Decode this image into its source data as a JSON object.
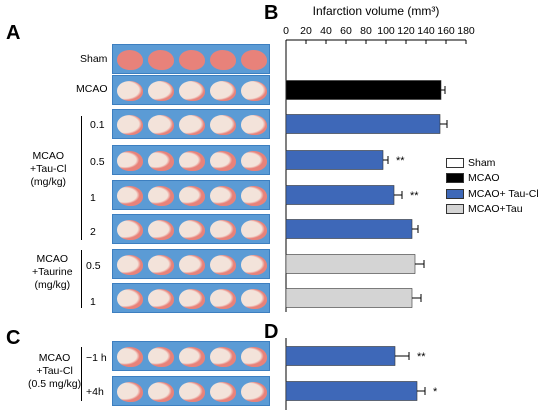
{
  "panels": {
    "a": "A",
    "b": "B",
    "c": "C",
    "d": "D"
  },
  "row_labels": {
    "sham": "Sham",
    "mcao": "MCAO",
    "taucl_group": [
      "MCAO",
      "+Tau-Cl",
      "(mg/kg)"
    ],
    "taucl_doses": [
      "0.1",
      "0.5",
      "1",
      "2"
    ],
    "taurine_group": [
      "MCAO",
      "+Taurine",
      "(mg/kg)"
    ],
    "taurine_doses": [
      "0.5",
      "1"
    ],
    "time_group": [
      "MCAO",
      "+Tau-Cl",
      "(0.5 mg/kg)"
    ],
    "time_points": [
      "−1 h",
      "+4h"
    ]
  },
  "colors": {
    "sham": "#ffffff",
    "mcao": "#000000",
    "taucl": "#3e68b8",
    "tau": "#d4d4d4",
    "photo_bg": "#5b9bd5",
    "tissue": "#e8827a",
    "infarct": "#f3e3da"
  },
  "chart_data": {
    "type": "bar",
    "orientation": "horizontal",
    "title": "Infarction volume (mm³)",
    "xlim": [
      0,
      180
    ],
    "ticks": [
      0,
      20,
      40,
      60,
      80,
      100,
      120,
      140,
      160,
      180
    ],
    "legend": {
      "position": "right",
      "entries": [
        "Sham",
        "MCAO",
        "MCAO+ Tau-Cl",
        "MCAO+Tau"
      ]
    },
    "categories": [
      "Sham",
      "MCAO",
      "Tau-Cl 0.1",
      "Tau-Cl 0.5",
      "Tau-Cl 1",
      "Tau-Cl 2",
      "Taurine 0.5",
      "Taurine 1",
      "Tau-Cl −1 h",
      "Tau-Cl +4h"
    ],
    "values": [
      0,
      155,
      154,
      97,
      108,
      126,
      129,
      126,
      109,
      131
    ],
    "errors": [
      0,
      4,
      7,
      5,
      8,
      6,
      9,
      9,
      14,
      8
    ],
    "group": [
      "sham",
      "mcao",
      "taucl",
      "taucl",
      "taucl",
      "taucl",
      "tau",
      "tau",
      "taucl",
      "taucl"
    ],
    "significance": [
      "",
      "",
      "",
      "**",
      "**",
      "",
      "",
      "",
      "**",
      "*"
    ]
  }
}
